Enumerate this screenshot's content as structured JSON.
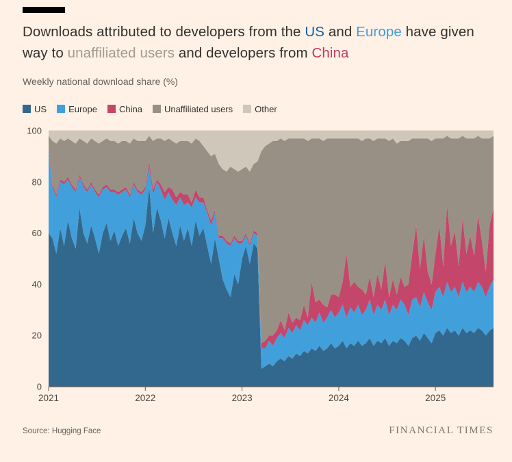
{
  "page": {
    "background": "#FFF1E5",
    "title_segments": [
      {
        "text": "Downloads attributed to developers from the ",
        "color": ""
      },
      {
        "text": "US",
        "color": "#1160A8"
      },
      {
        "text": " and ",
        "color": ""
      },
      {
        "text": "Europe",
        "color": "#3E9EDB"
      },
      {
        "text": " have given way to ",
        "color": ""
      },
      {
        "text": "unaffiliated users",
        "color": "#A39A90"
      },
      {
        "text": " and developers from ",
        "color": ""
      },
      {
        "text": "China",
        "color": "#BE3B66"
      }
    ],
    "subtitle": "Weekly national download share (%)",
    "source": "Source: Hugging Face",
    "brand": "FINANCIAL TIMES"
  },
  "chart_data": {
    "type": "area",
    "stacked": true,
    "title": "Downloads attributed to developers from the US and Europe have given way to unaffiliated users and developers from China",
    "ylabel": "Weekly national download share (%)",
    "xlabel": "",
    "ylim": [
      0,
      100
    ],
    "y_ticks": [
      0,
      20,
      40,
      60,
      80,
      100
    ],
    "x_ticks": [
      2021,
      2022,
      2023,
      2024,
      2025
    ],
    "x_range": [
      2021.0,
      2025.6
    ],
    "grid": true,
    "legend_position": "top",
    "axis_color": "#66605C",
    "grid_color": "#D9CBBD",
    "tick_label_color": "#4C4742",
    "x": [
      2021.0,
      2021.04,
      2021.08,
      2021.12,
      2021.16,
      2021.2,
      2021.24,
      2021.28,
      2021.32,
      2021.36,
      2021.4,
      2021.44,
      2021.48,
      2021.52,
      2021.56,
      2021.6,
      2021.64,
      2021.68,
      2021.72,
      2021.76,
      2021.8,
      2021.84,
      2021.88,
      2021.92,
      2021.96,
      2022.0,
      2022.04,
      2022.08,
      2022.12,
      2022.16,
      2022.2,
      2022.24,
      2022.28,
      2022.32,
      2022.36,
      2022.4,
      2022.44,
      2022.48,
      2022.52,
      2022.56,
      2022.6,
      2022.64,
      2022.68,
      2022.72,
      2022.76,
      2022.8,
      2022.84,
      2022.88,
      2022.92,
      2022.96,
      2023.0,
      2023.04,
      2023.08,
      2023.12,
      2023.16,
      2023.2,
      2023.24,
      2023.28,
      2023.32,
      2023.36,
      2023.4,
      2023.44,
      2023.48,
      2023.52,
      2023.56,
      2023.6,
      2023.64,
      2023.68,
      2023.72,
      2023.76,
      2023.8,
      2023.84,
      2023.88,
      2023.92,
      2023.96,
      2024.0,
      2024.04,
      2024.08,
      2024.12,
      2024.16,
      2024.2,
      2024.24,
      2024.28,
      2024.32,
      2024.36,
      2024.4,
      2024.44,
      2024.48,
      2024.52,
      2024.56,
      2024.6,
      2024.64,
      2024.68,
      2024.72,
      2024.76,
      2024.8,
      2024.84,
      2024.88,
      2024.92,
      2024.96,
      2025.0,
      2025.04,
      2025.08,
      2025.12,
      2025.16,
      2025.2,
      2025.24,
      2025.28,
      2025.32,
      2025.36,
      2025.4,
      2025.44,
      2025.48,
      2025.52,
      2025.56,
      2025.6
    ],
    "series": [
      {
        "name": "US",
        "color": "#33688E",
        "values": [
          60,
          58,
          52,
          62,
          55,
          65,
          58,
          54,
          70,
          60,
          56,
          63,
          58,
          52,
          60,
          64,
          57,
          61,
          55,
          59,
          62,
          56,
          66,
          60,
          57,
          63,
          78,
          60,
          70,
          65,
          58,
          66,
          60,
          55,
          63,
          57,
          62,
          55,
          65,
          59,
          62,
          55,
          48,
          58,
          50,
          42,
          38,
          35,
          44,
          40,
          50,
          55,
          48,
          56,
          54,
          7,
          8,
          9,
          8,
          10,
          11,
          10,
          12,
          11,
          13,
          12,
          14,
          13,
          15,
          14,
          16,
          14,
          15,
          17,
          15,
          16,
          18,
          15,
          17,
          16,
          18,
          16,
          17,
          19,
          16,
          18,
          17,
          19,
          16,
          18,
          17,
          19,
          18,
          16,
          19,
          20,
          18,
          21,
          19,
          17,
          21,
          22,
          20,
          23,
          21,
          22,
          20,
          23,
          21,
          22,
          21,
          23,
          22,
          20,
          22,
          23
        ]
      },
      {
        "name": "Europe",
        "color": "#41A0DC",
        "values": [
          33,
          20,
          22,
          18,
          24,
          16,
          20,
          22,
          12,
          18,
          20,
          16,
          18,
          22,
          17,
          14,
          19,
          15,
          20,
          17,
          15,
          18,
          13,
          16,
          18,
          14,
          8,
          15,
          10,
          12,
          15,
          10,
          13,
          16,
          11,
          14,
          10,
          15,
          9,
          13,
          10,
          13,
          15,
          10,
          8,
          16,
          18,
          20,
          14,
          16,
          6,
          4,
          7,
          4,
          5,
          8,
          7,
          9,
          8,
          9,
          10,
          9,
          11,
          10,
          11,
          10,
          12,
          11,
          12,
          11,
          13,
          11,
          12,
          13,
          12,
          13,
          14,
          12,
          14,
          13,
          14,
          12,
          13,
          15,
          12,
          14,
          13,
          15,
          12,
          14,
          13,
          15,
          14,
          12,
          15,
          15,
          13,
          16,
          14,
          13,
          16,
          17,
          15,
          18,
          16,
          17,
          15,
          18,
          16,
          17,
          16,
          18,
          17,
          15,
          17,
          19
        ]
      },
      {
        "name": "China",
        "color": "#C4466B",
        "values": [
          1,
          1,
          1,
          1,
          1,
          1,
          1,
          1,
          1,
          1,
          1,
          1,
          1,
          1,
          1,
          1,
          1,
          1,
          1,
          1,
          1,
          1,
          1,
          1,
          1,
          1,
          2,
          2,
          1,
          2,
          3,
          2,
          4,
          3,
          2,
          4,
          3,
          2,
          3,
          2,
          2,
          1,
          2,
          1,
          1,
          1,
          1,
          1,
          1,
          1,
          1,
          1,
          1,
          1,
          1,
          2,
          3,
          2,
          4,
          3,
          5,
          3,
          6,
          4,
          3,
          4,
          6,
          3,
          14,
          8,
          5,
          7,
          4,
          6,
          9,
          6,
          9,
          25,
          8,
          12,
          7,
          10,
          6,
          9,
          7,
          12,
          8,
          15,
          7,
          10,
          6,
          9,
          7,
          12,
          18,
          28,
          15,
          22,
          12,
          10,
          15,
          24,
          12,
          30,
          18,
          22,
          12,
          25,
          15,
          20,
          14,
          26,
          18,
          10,
          24,
          28
        ]
      },
      {
        "name": "Unaffiliated users",
        "color": "#989084",
        "values": [
          4,
          17,
          20,
          16,
          16,
          15,
          17,
          18,
          14,
          17,
          18,
          17,
          19,
          20,
          18,
          18,
          19,
          19,
          19,
          19,
          18,
          20,
          17,
          19,
          20,
          18,
          10,
          19,
          16,
          18,
          20,
          19,
          19,
          21,
          20,
          21,
          21,
          23,
          20,
          22,
          20,
          23,
          25,
          22,
          28,
          26,
          27,
          30,
          26,
          27,
          28,
          26,
          28,
          26,
          28,
          75,
          76,
          75,
          76,
          74,
          71,
          74,
          68,
          72,
          70,
          71,
          65,
          69,
          56,
          64,
          63,
          64,
          66,
          61,
          61,
          62,
          56,
          45,
          58,
          56,
          58,
          58,
          61,
          54,
          61,
          53,
          59,
          48,
          61,
          55,
          59,
          53,
          57,
          56,
          45,
          34,
          51,
          38,
          52,
          56,
          45,
          34,
          50,
          27,
          42,
          36,
          50,
          32,
          45,
          38,
          46,
          31,
          40,
          52,
          34,
          28
        ]
      },
      {
        "name": "Other",
        "color": "#CFC7BA",
        "values": [
          2,
          4,
          5,
          3,
          4,
          3,
          4,
          5,
          3,
          4,
          5,
          3,
          4,
          5,
          4,
          3,
          4,
          4,
          5,
          4,
          4,
          5,
          3,
          4,
          4,
          4,
          2,
          4,
          3,
          3,
          4,
          3,
          4,
          5,
          4,
          4,
          4,
          5,
          3,
          4,
          6,
          8,
          10,
          9,
          13,
          15,
          16,
          14,
          15,
          16,
          15,
          14,
          16,
          13,
          12,
          8,
          6,
          5,
          4,
          4,
          3,
          4,
          3,
          3,
          3,
          3,
          3,
          4,
          3,
          3,
          3,
          4,
          3,
          3,
          3,
          3,
          3,
          3,
          3,
          3,
          3,
          4,
          3,
          3,
          4,
          3,
          3,
          3,
          4,
          3,
          5,
          4,
          4,
          4,
          3,
          3,
          3,
          3,
          3,
          4,
          3,
          3,
          3,
          2,
          3,
          3,
          3,
          2,
          3,
          3,
          3,
          2,
          3,
          3,
          3,
          2
        ]
      }
    ]
  }
}
